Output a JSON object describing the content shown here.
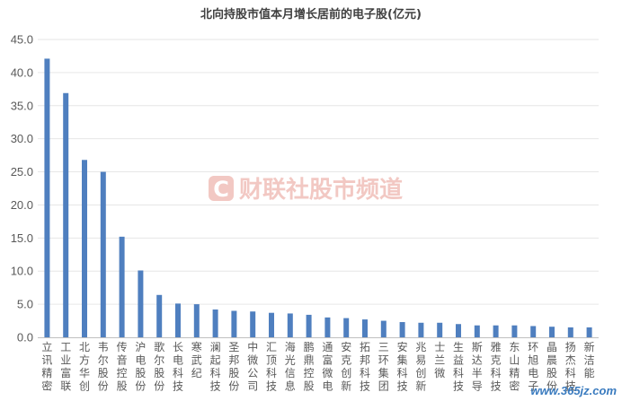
{
  "chart_data": {
    "type": "bar",
    "title": "北向持股市值本月增长居前的电子股(亿元)",
    "xlabel": "",
    "ylabel": "",
    "ylim": [
      0,
      45
    ],
    "yticks": [
      "0.0",
      "5.0",
      "10.0",
      "15.0",
      "20.0",
      "25.0",
      "30.0",
      "35.0",
      "40.0",
      "45.0"
    ],
    "grid": true,
    "legend": "none",
    "bar_color": "#4f7fbf",
    "categories": [
      "立讯精密",
      "工业富联",
      "北方华创",
      "韦尔股份",
      "传音控股",
      "沪电股份",
      "歌尔股份",
      "长电科技",
      "寒武纪",
      "澜起科技",
      "圣邦股份",
      "中微公司",
      "汇顶科技",
      "海光信息",
      "鹏鼎控股",
      "通富微电",
      "安克创新",
      "拓邦科技",
      "三环集团",
      "安集科技",
      "兆易创新",
      "士兰微",
      "生益科技",
      "斯达半导",
      "雅克科技",
      "东山精密",
      "环旭电子",
      "晶晨股份",
      "扬杰科技",
      "新洁能"
    ],
    "values": [
      42.1,
      36.9,
      26.8,
      25.0,
      15.2,
      10.1,
      6.4,
      5.1,
      5.0,
      4.2,
      4.0,
      3.9,
      3.7,
      3.6,
      3.4,
      3.0,
      2.9,
      2.7,
      2.5,
      2.3,
      2.2,
      2.2,
      2.0,
      1.8,
      1.8,
      1.8,
      1.7,
      1.6,
      1.5,
      1.5
    ]
  },
  "watermark": {
    "logo_letter": "C",
    "text": "财联社股市频道",
    "color": "#f2c8c3"
  },
  "site_mark": {
    "text": "www.365jz.com"
  }
}
